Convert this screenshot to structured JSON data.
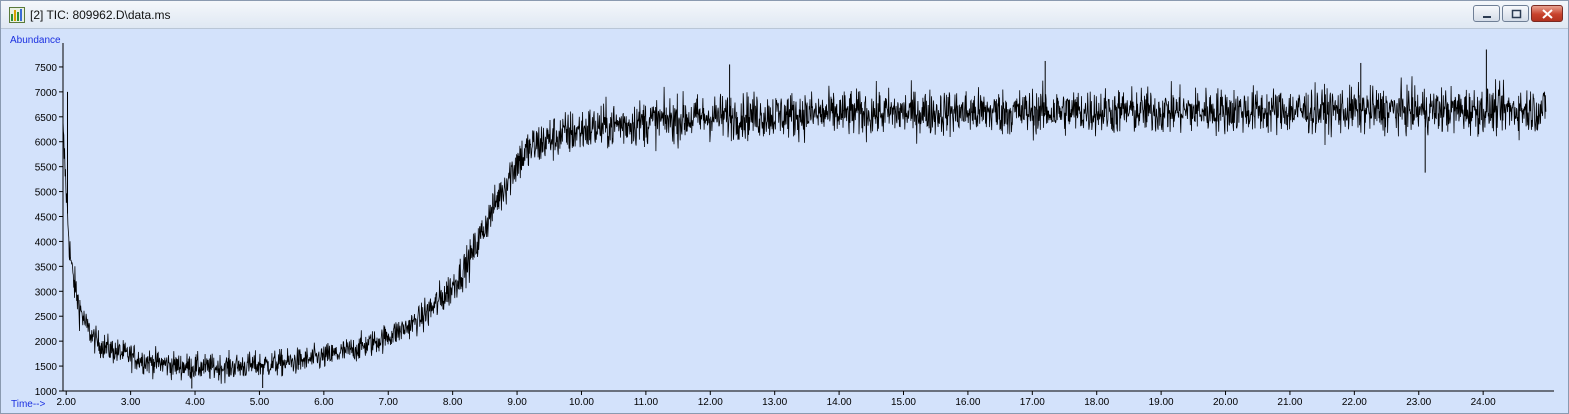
{
  "window": {
    "title": "[2] TIC: 809962.D\\data.ms",
    "icon": "chromatogram-app-icon",
    "buttons": {
      "minimize": "minimize-icon",
      "maximize": "restore-icon",
      "close": "close-icon"
    }
  },
  "colors": {
    "plot_bg": "#d3e2fb",
    "trace": "#000000",
    "axis_label": "#1a2fe0"
  },
  "chart_data": {
    "type": "line",
    "title": "",
    "xlabel": "Time-->",
    "ylabel": "Abundance",
    "xlim": [
      1.95,
      25.1
    ],
    "ylim": [
      1000,
      7900
    ],
    "xticks": [
      2,
      3,
      4,
      5,
      6,
      7,
      8,
      9,
      10,
      11,
      12,
      13,
      14,
      15,
      16,
      17,
      18,
      19,
      20,
      21,
      22,
      23,
      24
    ],
    "xtick_labels": [
      "2.00",
      "3.00",
      "4.00",
      "5.00",
      "6.00",
      "7.00",
      "8.00",
      "9.00",
      "10.00",
      "11.00",
      "12.00",
      "13.00",
      "14.00",
      "15.00",
      "16.00",
      "17.00",
      "18.00",
      "19.00",
      "20.00",
      "21.00",
      "22.00",
      "23.00",
      "24.00"
    ],
    "yticks": [
      1000,
      1500,
      2000,
      2500,
      3000,
      3500,
      4000,
      4500,
      5000,
      5500,
      6000,
      6500,
      7000,
      7500
    ],
    "ytick_labels": [
      "1000",
      "1500",
      "2000",
      "2500",
      "3000",
      "3500",
      "4000",
      "4500",
      "5000",
      "5500",
      "6000",
      "6500",
      "7000",
      "7500"
    ],
    "grid": false,
    "series": [
      {
        "x": [
          1.95,
          2.0,
          2.05,
          2.1,
          2.2,
          2.3,
          2.4,
          2.5,
          2.75,
          3.0,
          3.25,
          3.5,
          3.75,
          4.0,
          4.25,
          4.5,
          4.75,
          5.0,
          5.25,
          5.5,
          5.75,
          6.0,
          6.25,
          6.5,
          6.75,
          7.0,
          7.25,
          7.5,
          7.75,
          8.0,
          8.25,
          8.5,
          8.75,
          9.0,
          9.25,
          9.5,
          9.75,
          10.0,
          10.5,
          11.0,
          11.5,
          12.0,
          13.0,
          14.0,
          15.0,
          16.0,
          17.0,
          18.0,
          19.0,
          20.0,
          21.0,
          22.0,
          23.0,
          24.0,
          24.5,
          25.0
        ],
        "y": [
          6200,
          5000,
          3900,
          3300,
          2700,
          2350,
          2100,
          1950,
          1800,
          1700,
          1600,
          1550,
          1500,
          1480,
          1470,
          1480,
          1500,
          1520,
          1550,
          1580,
          1620,
          1680,
          1760,
          1850,
          1960,
          2100,
          2250,
          2450,
          2750,
          3100,
          3600,
          4300,
          5000,
          5600,
          5900,
          6050,
          6150,
          6230,
          6330,
          6400,
          6450,
          6500,
          6530,
          6560,
          6580,
          6590,
          6600,
          6610,
          6610,
          6620,
          6620,
          6630,
          6630,
          6630,
          6640,
          6640
        ]
      }
    ],
    "spikes": [
      {
        "x": 2.02,
        "y": 7000
      },
      {
        "x": 12.3,
        "y": 7550
      },
      {
        "x": 17.2,
        "y": 7620
      },
      {
        "x": 22.1,
        "y": 7580
      },
      {
        "x": 24.05,
        "y": 7850
      },
      {
        "x": 23.1,
        "y": 5380
      },
      {
        "x": 3.95,
        "y": 1050
      },
      {
        "x": 5.05,
        "y": 1060
      }
    ]
  }
}
